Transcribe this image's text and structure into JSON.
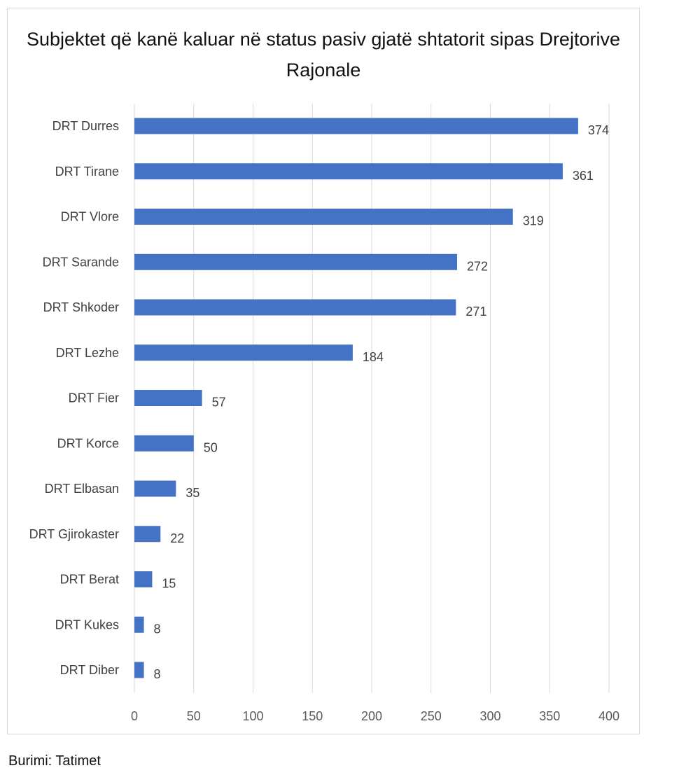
{
  "chart_data": {
    "type": "bar",
    "orientation": "horizontal",
    "title": "Subjektet që kanë kaluar në status pasiv gjatë shtatorit sipas Drejtorive Rajonale",
    "categories": [
      "DRT Durres",
      "DRT Tirane",
      "DRT Vlore",
      "DRT Sarande",
      "DRT Shkoder",
      "DRT Lezhe",
      "DRT Fier",
      "DRT Korce",
      "DRT Elbasan",
      "DRT Gjirokaster",
      "DRT Berat",
      "DRT Kukes",
      "DRT Diber"
    ],
    "values": [
      374,
      361,
      319,
      272,
      271,
      184,
      57,
      50,
      35,
      22,
      15,
      8,
      8
    ],
    "xlim": [
      0,
      400
    ],
    "xticks": [
      0,
      50,
      100,
      150,
      200,
      250,
      300,
      350,
      400
    ],
    "grid": "vertical",
    "data_labels": true,
    "bar_color": "#4472C4"
  },
  "source": "Burimi: Tatimet"
}
